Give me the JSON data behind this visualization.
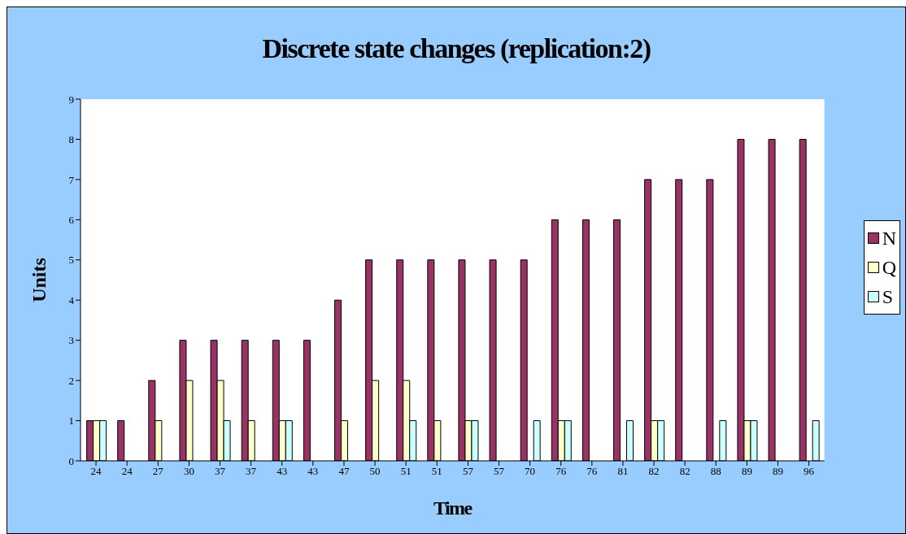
{
  "chart_data": {
    "type": "bar",
    "title": "Discrete state changes (replication:2)",
    "xlabel": "Time",
    "ylabel": "Units",
    "categories": [
      "24",
      "24",
      "27",
      "30",
      "37",
      "37",
      "43",
      "43",
      "47",
      "50",
      "51",
      "51",
      "57",
      "57",
      "70",
      "76",
      "76",
      "81",
      "82",
      "82",
      "88",
      "89",
      "89",
      "96"
    ],
    "series": [
      {
        "name": "N",
        "color": "#993366",
        "values": [
          1,
          1,
          2,
          3,
          3,
          3,
          3,
          3,
          4,
          5,
          5,
          5,
          5,
          5,
          5,
          6,
          6,
          6,
          7,
          7,
          7,
          8,
          8,
          8
        ]
      },
      {
        "name": "Q",
        "color": "#ffffcc",
        "values": [
          1,
          0,
          1,
          2,
          2,
          1,
          1,
          0,
          1,
          2,
          2,
          1,
          1,
          0,
          0,
          1,
          0,
          0,
          1,
          0,
          0,
          1,
          0,
          0
        ]
      },
      {
        "name": "S",
        "color": "#ccffff",
        "values": [
          1,
          0,
          0,
          0,
          1,
          0,
          1,
          0,
          0,
          0,
          1,
          0,
          1,
          0,
          1,
          1,
          0,
          1,
          1,
          0,
          1,
          1,
          0,
          1
        ]
      }
    ],
    "ylim": [
      0,
      9
    ],
    "yticks": [
      0,
      1,
      2,
      3,
      4,
      5,
      6,
      7,
      8,
      9
    ],
    "grid": false,
    "legend": "right"
  }
}
